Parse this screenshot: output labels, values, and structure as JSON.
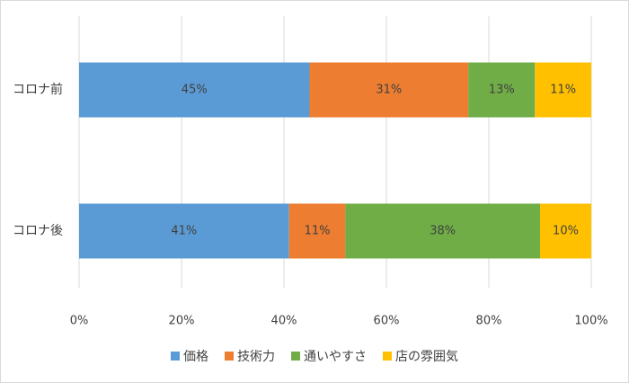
{
  "chart_data": {
    "type": "stacked-barh",
    "categories": [
      "コロナ前",
      "コロナ後"
    ],
    "series": [
      {
        "name": "価格",
        "color": "#5b9bd5",
        "values": [
          45,
          41
        ],
        "value_labels": [
          "45%",
          "41%"
        ]
      },
      {
        "name": "技術力",
        "color": "#ed7d31",
        "values": [
          31,
          11
        ],
        "value_labels": [
          "31%",
          "11%"
        ]
      },
      {
        "name": "通いやすさ",
        "color": "#70ad47",
        "values": [
          13,
          38
        ],
        "value_labels": [
          "13%",
          "38%"
        ]
      },
      {
        "name": "店の雰囲気",
        "color": "#ffc000",
        "values": [
          11,
          10
        ],
        "value_labels": [
          "11%",
          "10%"
        ]
      }
    ],
    "xlim": [
      0,
      100
    ],
    "xticks": [
      {
        "value": 0,
        "label": "0%"
      },
      {
        "value": 20,
        "label": "20%"
      },
      {
        "value": 40,
        "label": "40%"
      },
      {
        "value": 60,
        "label": "60%"
      },
      {
        "value": 80,
        "label": "80%"
      },
      {
        "value": 100,
        "label": "100%"
      }
    ],
    "grid": true,
    "legend": "bottom"
  }
}
